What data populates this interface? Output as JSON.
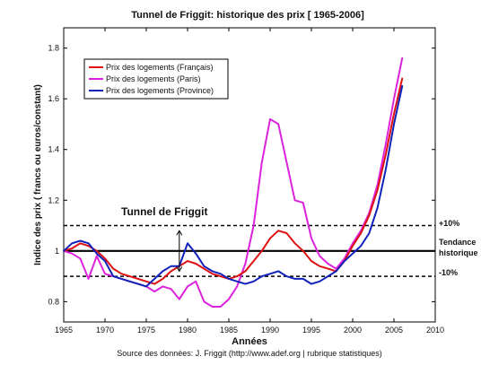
{
  "chart_data": {
    "type": "line",
    "title": "Tunnel de Friggit: historique des prix [ 1965-2006]",
    "xlabel": "Années",
    "ylabel": "Indice des prix ( francs ou euros/constant)",
    "source": "Source des données: J. Friggit (http://www.adef.org | rubrique statistiques)",
    "xlim": [
      1965,
      2010
    ],
    "ylim": [
      0.72,
      1.88
    ],
    "xticks": [
      1965,
      1970,
      1975,
      1980,
      1985,
      1990,
      1995,
      2000,
      2005,
      2010
    ],
    "yticks": [
      0.8,
      1,
      1.2,
      1.4,
      1.6,
      1.8
    ],
    "ytick_labels": [
      "0.8",
      "1",
      "1.2",
      "1.4",
      "1.6",
      "1.8"
    ],
    "grid": false,
    "legend_position": "top-left",
    "series": [
      {
        "name": "Prix des logements (Français)",
        "color": "#dd1111",
        "x": [
          1965,
          1966,
          1967,
          1968,
          1969,
          1970,
          1971,
          1972,
          1973,
          1974,
          1975,
          1976,
          1977,
          1978,
          1979,
          1980,
          1981,
          1982,
          1983,
          1984,
          1985,
          1986,
          1987,
          1988,
          1989,
          1990,
          1991,
          1992,
          1993,
          1994,
          1995,
          1996,
          1997,
          1998,
          1999,
          2000,
          2001,
          2002,
          2003,
          2004,
          2005,
          2006
        ],
        "values": [
          1.0,
          1.01,
          1.03,
          1.02,
          1.0,
          0.97,
          0.93,
          0.91,
          0.9,
          0.89,
          0.88,
          0.87,
          0.89,
          0.92,
          0.94,
          0.96,
          0.95,
          0.93,
          0.91,
          0.9,
          0.89,
          0.9,
          0.92,
          0.96,
          1.0,
          1.05,
          1.08,
          1.07,
          1.03,
          1.0,
          0.96,
          0.94,
          0.93,
          0.92,
          0.96,
          1.02,
          1.07,
          1.14,
          1.24,
          1.38,
          1.54,
          1.68
        ]
      },
      {
        "name": "Prix des logements (Paris)",
        "color": "#dd22dd",
        "x": [
          1965,
          1966,
          1967,
          1968,
          1969,
          1970,
          1971,
          1972,
          1973,
          1974,
          1975,
          1976,
          1977,
          1978,
          1979,
          1980,
          1981,
          1982,
          1983,
          1984,
          1985,
          1986,
          1987,
          1988,
          1989,
          1990,
          1991,
          1992,
          1993,
          1994,
          1995,
          1996,
          1997,
          1998,
          1999,
          2000,
          2001,
          2002,
          2003,
          2004,
          2005,
          2006
        ],
        "values": [
          1.0,
          0.99,
          0.97,
          0.89,
          0.98,
          0.91,
          0.9,
          0.89,
          0.88,
          0.87,
          0.86,
          0.84,
          0.86,
          0.85,
          0.81,
          0.86,
          0.88,
          0.8,
          0.78,
          0.78,
          0.81,
          0.86,
          0.95,
          1.1,
          1.35,
          1.52,
          1.5,
          1.35,
          1.2,
          1.19,
          1.05,
          0.98,
          0.95,
          0.93,
          0.97,
          1.03,
          1.08,
          1.15,
          1.26,
          1.42,
          1.6,
          1.76
        ]
      },
      {
        "name": "Prix des logements (Province)",
        "color": "#1122bb",
        "x": [
          1965,
          1966,
          1967,
          1968,
          1969,
          1970,
          1971,
          1972,
          1973,
          1974,
          1975,
          1976,
          1977,
          1978,
          1979,
          1980,
          1981,
          1982,
          1983,
          1984,
          1985,
          1986,
          1987,
          1988,
          1989,
          1990,
          1991,
          1992,
          1993,
          1994,
          1995,
          1996,
          1997,
          1998,
          1999,
          2000,
          2001,
          2002,
          2003,
          2004,
          2005,
          2006
        ],
        "values": [
          1.0,
          1.03,
          1.04,
          1.03,
          0.99,
          0.96,
          0.9,
          0.89,
          0.88,
          0.87,
          0.86,
          0.89,
          0.92,
          0.94,
          0.94,
          1.03,
          0.99,
          0.94,
          0.92,
          0.91,
          0.89,
          0.88,
          0.87,
          0.88,
          0.9,
          0.91,
          0.92,
          0.9,
          0.89,
          0.89,
          0.87,
          0.88,
          0.9,
          0.92,
          0.96,
          0.99,
          1.02,
          1.07,
          1.17,
          1.32,
          1.5,
          1.65
        ]
      }
    ],
    "reference_lines": [
      {
        "value": 1.1,
        "label": "+10%",
        "style": "dashed"
      },
      {
        "value": 1.0,
        "label": "Tendance historique",
        "label_lines": [
          "Tendance",
          "historique"
        ],
        "style": "solid"
      },
      {
        "value": 0.9,
        "label": "-10%",
        "style": "dashed"
      }
    ],
    "annotations": [
      {
        "text": "Tunnel de Friggit",
        "arrow_x": 1979
      }
    ]
  }
}
